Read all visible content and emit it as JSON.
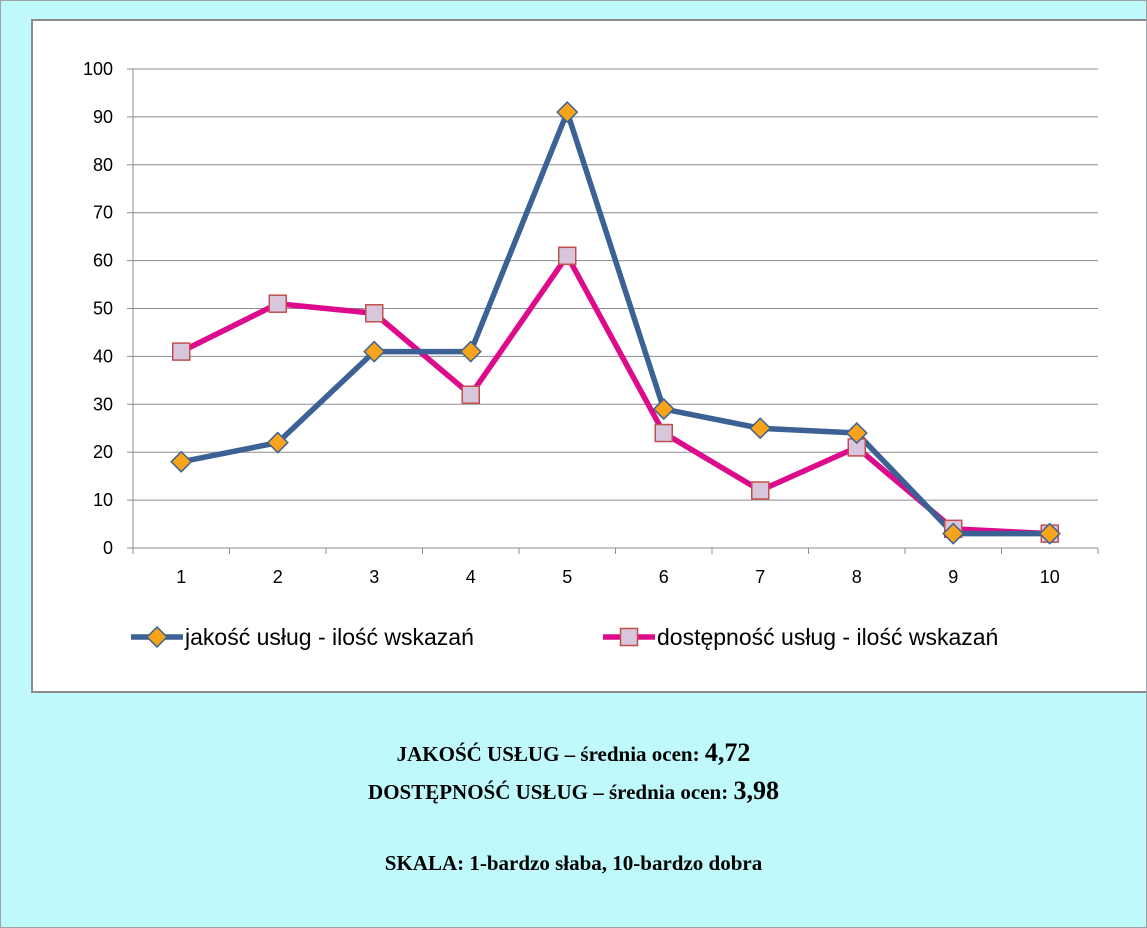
{
  "colors": {
    "background": "#bff9fb",
    "series1_line": "#3c6194",
    "series1_marker": "#f7a41a",
    "series2_line": "#dd0a8c",
    "series2_marker": "#d7c6dc",
    "grid": "#8c8c8c"
  },
  "chart_data": {
    "type": "line",
    "categories": [
      "1",
      "2",
      "3",
      "4",
      "5",
      "6",
      "7",
      "8",
      "9",
      "10"
    ],
    "ylim": [
      0,
      100
    ],
    "yticks": [
      "0",
      "10",
      "20",
      "30",
      "40",
      "50",
      "60",
      "70",
      "80",
      "90",
      "100"
    ],
    "grid": true,
    "legend_position": "bottom",
    "series": [
      {
        "name": "jakość usług - ilość wskazań",
        "values": [
          18,
          22,
          41,
          41,
          91,
          29,
          25,
          24,
          3,
          3
        ],
        "marker": "diamond"
      },
      {
        "name": "dostępność usług - ilość wskazań",
        "values": [
          41,
          51,
          49,
          32,
          61,
          24,
          12,
          21,
          4,
          3
        ],
        "marker": "square"
      }
    ]
  },
  "summary": {
    "quality_label": "JAKOŚĆ USŁUG – średnia ocen:",
    "quality_value": "4,72",
    "availability_label": "DOSTĘPNOŚĆ USŁUG – średnia ocen:",
    "availability_value": "3,98",
    "scale_text": "SKALA: 1-bardzo słaba, 10-bardzo dobra"
  }
}
